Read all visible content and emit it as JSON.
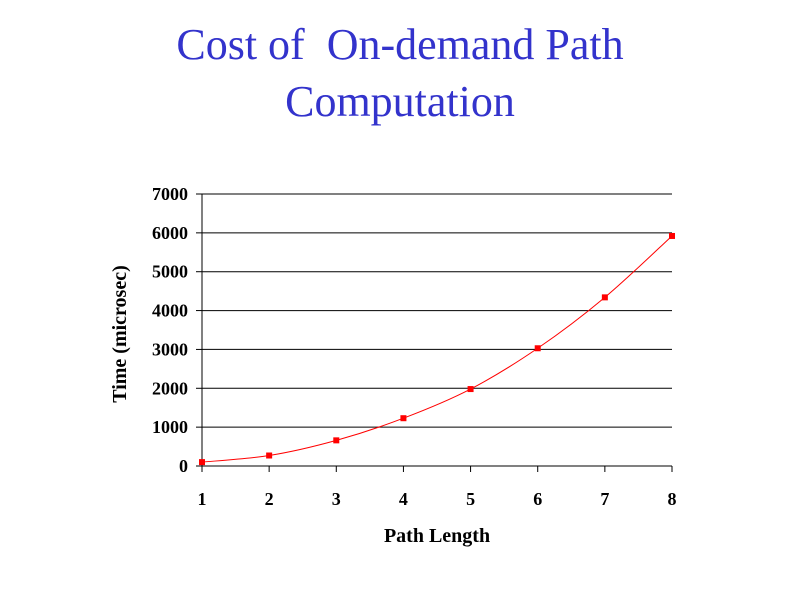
{
  "slide": {
    "title_line1": "Cost of  On-demand Path",
    "title_line2": "Computation",
    "title_color": "#3333CC"
  },
  "chart_data": {
    "type": "line",
    "title": "",
    "xlabel": "Path Length",
    "ylabel": "Time (microsec)",
    "x": [
      1,
      2,
      3,
      4,
      5,
      6,
      7,
      8
    ],
    "series": [
      {
        "values": [
          100,
          270,
          660,
          1230,
          1980,
          3030,
          4340,
          5920
        ],
        "color": "#FF0000",
        "marker": "square"
      }
    ],
    "xlim": [
      1,
      8
    ],
    "ylim": [
      0,
      7000
    ],
    "xticks": [
      "1",
      "2",
      "3",
      "4",
      "5",
      "6",
      "7",
      "8"
    ],
    "yticks": [
      "0",
      "1000",
      "2000",
      "3000",
      "4000",
      "5000",
      "6000",
      "7000"
    ],
    "grid": "horizontal",
    "legend": "none"
  }
}
